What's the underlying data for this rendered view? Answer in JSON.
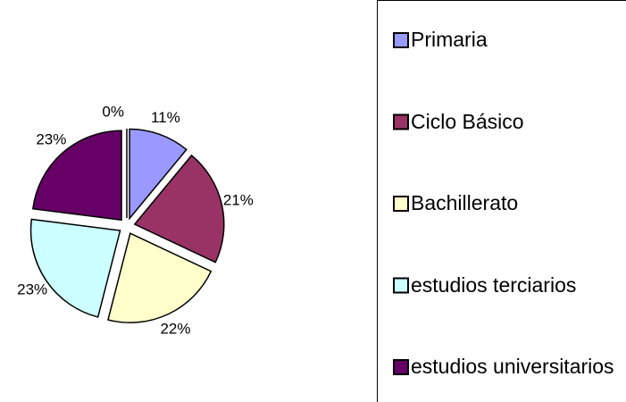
{
  "chart_data": {
    "type": "pie",
    "categories": [
      "Primaria",
      "Ciclo Básico",
      "Bachillerato",
      "estudios terciarios",
      "estudios universitarios",
      null
    ],
    "values": [
      11,
      21,
      22,
      23,
      23,
      0
    ],
    "value_labels": [
      "11%",
      "21%",
      "22%",
      "23%",
      "23%",
      "0%"
    ],
    "colors": [
      "#9999ff",
      "#993366",
      "#ffffcc",
      "#ccffff",
      "#660066",
      "#ffffff"
    ],
    "legend": "right"
  }
}
